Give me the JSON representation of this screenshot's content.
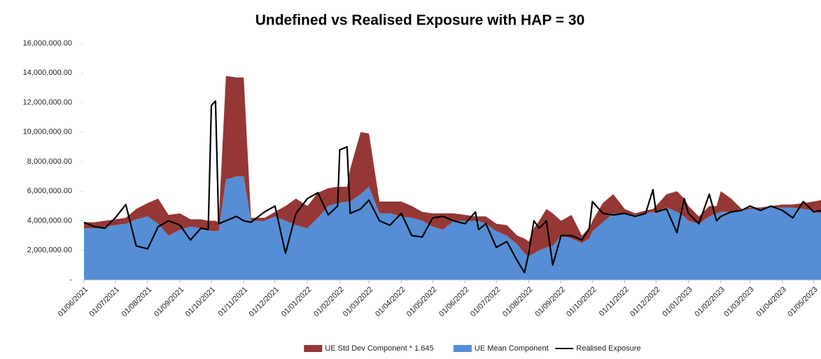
{
  "chart_data": {
    "type": "area",
    "title": "Undefined vs Realised Exposure with HAP = 30",
    "x": [
      "01/06/2021",
      "11/06/2021",
      "21/06/2021",
      "01/07/2021",
      "11/07/2021",
      "21/07/2021",
      "01/08/2021",
      "11/08/2021",
      "21/08/2021",
      "01/09/2021",
      "11/09/2021",
      "21/09/2021",
      "28/09/2021",
      "01/10/2021",
      "05/10/2021",
      "08/10/2021",
      "15/10/2021",
      "25/10/2021",
      "01/11/2021",
      "08/11/2021",
      "21/11/2021",
      "01/12/2021",
      "11/12/2021",
      "21/12/2021",
      "01/01/2022",
      "11/01/2022",
      "21/01/2022",
      "30/01/2022",
      "01/02/2022",
      "08/02/2022",
      "11/02/2022",
      "21/02/2022",
      "01/03/2022",
      "11/03/2022",
      "21/03/2022",
      "01/04/2022",
      "11/04/2022",
      "21/04/2022",
      "01/05/2022",
      "11/05/2022",
      "21/05/2022",
      "01/06/2022",
      "11/06/2022",
      "14/06/2022",
      "21/06/2022",
      "01/07/2022",
      "11/07/2022",
      "21/07/2022",
      "28/07/2022",
      "01/08/2022",
      "06/08/2022",
      "11/08/2022",
      "18/08/2022",
      "24/08/2022",
      "01/09/2022",
      "11/09/2022",
      "21/09/2022",
      "28/09/2022",
      "01/10/2022",
      "11/10/2022",
      "21/10/2022",
      "01/11/2022",
      "11/11/2022",
      "21/11/2022",
      "28/11/2022",
      "01/12/2022",
      "11/12/2022",
      "21/12/2022",
      "28/12/2022",
      "01/01/2023",
      "11/01/2023",
      "21/01/2023",
      "28/01/2023",
      "01/02/2023",
      "11/02/2023",
      "21/02/2023",
      "01/03/2023",
      "11/03/2023",
      "21/03/2023",
      "01/04/2023",
      "11/04/2023",
      "21/04/2023",
      "01/05/2023",
      "08/05/2023"
    ],
    "series": [
      {
        "name": "UE Std Dev Component * 1.645",
        "kind": "area",
        "color": "#953735",
        "values": [
          400000,
          400000,
          400000,
          400000,
          400000,
          700000,
          900000,
          1700000,
          1400000,
          1100000,
          500000,
          600000,
          600000,
          700000,
          700000,
          600000,
          7000000,
          6700000,
          6700000,
          200000,
          200000,
          300000,
          1000000,
          1800000,
          1500000,
          1700000,
          1200000,
          1100000,
          1100000,
          1000000,
          2200000,
          4200000,
          3600000,
          800000,
          800000,
          1000000,
          800000,
          600000,
          900000,
          1100000,
          500000,
          400000,
          300000,
          300000,
          500000,
          500000,
          700000,
          600000,
          1000000,
          1000000,
          1700000,
          2000000,
          2600000,
          2200000,
          1000000,
          1600000,
          500000,
          700000,
          700000,
          1300000,
          1300000,
          300000,
          100000,
          200000,
          200000,
          500000,
          900000,
          1400000,
          1200000,
          1000000,
          500000,
          700000,
          500000,
          1400000,
          900000,
          100000,
          100000,
          100000,
          100000,
          200000,
          200000,
          400000,
          600000,
          900000
        ]
      },
      {
        "name": "UE Mean Component",
        "kind": "area",
        "color": "#558ed5",
        "values": [
          3500000,
          3500000,
          3600000,
          3700000,
          3800000,
          4100000,
          4300000,
          3800000,
          3000000,
          3400000,
          3600000,
          3500000,
          3400000,
          3300000,
          3300000,
          3300000,
          6800000,
          7000000,
          7000000,
          4000000,
          4000000,
          4300000,
          4000000,
          3700000,
          3500000,
          4200000,
          5000000,
          5200000,
          5200000,
          5300000,
          5300000,
          5800000,
          6300000,
          4500000,
          4500000,
          4300000,
          4200000,
          4000000,
          3600000,
          3400000,
          4000000,
          4000000,
          4000000,
          4000000,
          3800000,
          3300000,
          3000000,
          2400000,
          1800000,
          1600000,
          1800000,
          2000000,
          2200000,
          2300000,
          3000000,
          2800000,
          2500000,
          2800000,
          3300000,
          3900000,
          4500000,
          4500000,
          4400000,
          4500000,
          4600000,
          4500000,
          4900000,
          4600000,
          4300000,
          4000000,
          3800000,
          4300000,
          4500000,
          4600000,
          4600000,
          4700000,
          4800000,
          4800000,
          4900000,
          4900000,
          4900000,
          4800000,
          4700000,
          4500000
        ]
      },
      {
        "name": "Realised Exposure",
        "kind": "line",
        "color": "#000000",
        "values": [
          3900000,
          3600000,
          3500000,
          4200000,
          5100000,
          2300000,
          2100000,
          3600000,
          4000000,
          3700000,
          2700000,
          3500000,
          3400000,
          11800000,
          12100000,
          3800000,
          4000000,
          4300000,
          4000000,
          3900000,
          4600000,
          5000000,
          1800000,
          4500000,
          5500000,
          5900000,
          4400000,
          5000000,
          8800000,
          9000000,
          4500000,
          4800000,
          5400000,
          4000000,
          3700000,
          4500000,
          3000000,
          2900000,
          4200000,
          4300000,
          4000000,
          3800000,
          4600000,
          3400000,
          3800000,
          2200000,
          2600000,
          1300000,
          500000,
          1800000,
          4000000,
          3500000,
          4000000,
          1000000,
          3000000,
          3000000,
          2700000,
          3500000,
          5300000,
          4500000,
          4400000,
          4500000,
          4300000,
          4500000,
          6100000,
          4600000,
          4800000,
          3200000,
          5500000,
          4500000,
          3800000,
          5800000,
          4000000,
          4300000,
          4600000,
          4700000,
          5000000,
          4700000,
          5000000,
          4700000,
          4200000,
          5300000,
          4600000,
          4700000
        ]
      }
    ],
    "xlim": [
      "01/06/2021",
      "08/05/2023"
    ],
    "xticks": [
      "01/06/2021",
      "01/07/2021",
      "01/08/2021",
      "01/09/2021",
      "01/10/2021",
      "01/11/2021",
      "01/12/2021",
      "01/01/2022",
      "01/02/2022",
      "01/03/2022",
      "01/04/2022",
      "01/05/2022",
      "01/06/2022",
      "01/07/2022",
      "01/08/2022",
      "01/09/2022",
      "01/10/2022",
      "01/11/2022",
      "01/12/2022",
      "01/01/2023",
      "01/02/2023",
      "01/03/2023",
      "01/04/2023",
      "01/05/2023"
    ],
    "ylim": [
      0,
      16000000
    ],
    "yticks": [
      {
        "value": 0,
        "label": "-"
      },
      {
        "value": 2000000,
        "label": "2,000,000.00"
      },
      {
        "value": 4000000,
        "label": "4,000,000.00"
      },
      {
        "value": 6000000,
        "label": "6,000,000.00"
      },
      {
        "value": 8000000,
        "label": "8,000,000.00"
      },
      {
        "value": 10000000,
        "label": "10,000,000.00"
      },
      {
        "value": 12000000,
        "label": "12,000,000.00"
      },
      {
        "value": 14000000,
        "label": "14,000,000.00"
      },
      {
        "value": 16000000,
        "label": "16,000,000.00"
      }
    ],
    "grid": false,
    "legend": "bottom"
  }
}
